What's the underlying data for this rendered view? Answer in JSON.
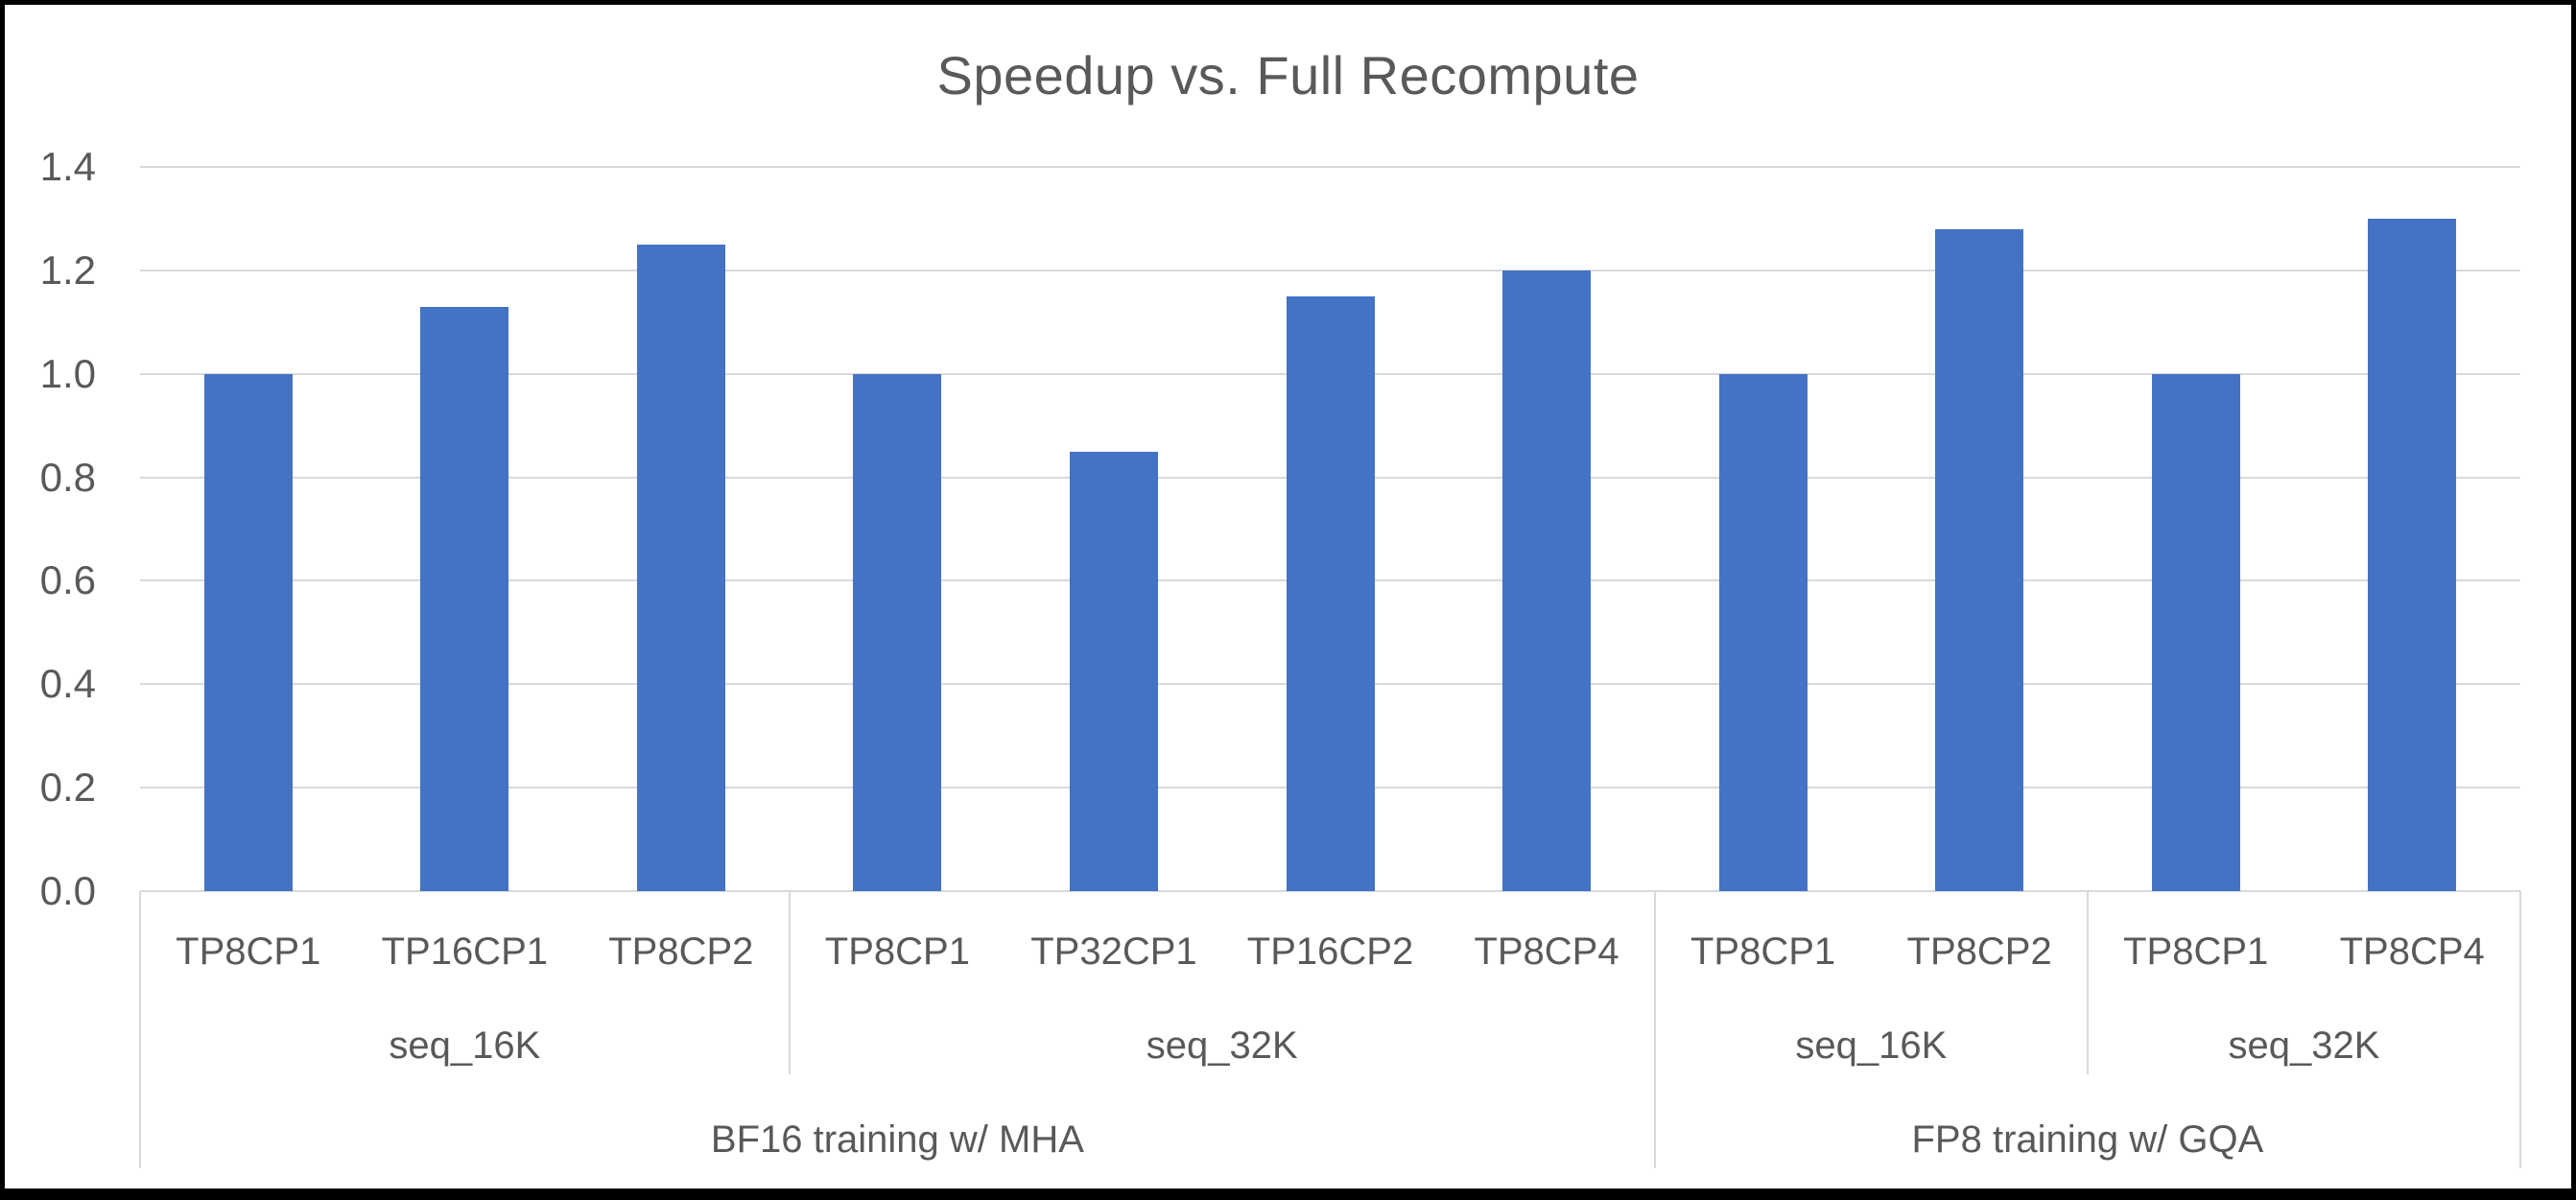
{
  "chart_data": {
    "type": "bar",
    "title": "Speedup vs. Full Recompute",
    "xlabel": "",
    "ylabel": "",
    "ylim": [
      0,
      1.4
    ],
    "ytick_step": 0.2,
    "yticks": [
      "0.0",
      "0.2",
      "0.4",
      "0.6",
      "0.8",
      "1.0",
      "1.2",
      "1.4"
    ],
    "grid": "horizontal",
    "legend": "none",
    "bar_color": "#4472C4",
    "gridline_color": "#D9D9D9",
    "divider_color": "#D9D9D9",
    "text_color": "#595959",
    "groups": [
      {
        "label": "BF16 training w/ MHA",
        "seq_groups": [
          {
            "label": "seq_16K",
            "bars": [
              {
                "label": "TP8CP1",
                "value": 1.0
              },
              {
                "label": "TP16CP1",
                "value": 1.13
              },
              {
                "label": "TP8CP2",
                "value": 1.25
              }
            ]
          },
          {
            "label": "seq_32K",
            "bars": [
              {
                "label": "TP8CP1",
                "value": 1.0
              },
              {
                "label": "TP32CP1",
                "value": 0.85
              },
              {
                "label": "TP16CP2",
                "value": 1.15
              },
              {
                "label": "TP8CP4",
                "value": 1.2
              }
            ]
          }
        ]
      },
      {
        "label": "FP8 training w/ GQA",
        "seq_groups": [
          {
            "label": "seq_16K",
            "bars": [
              {
                "label": "TP8CP1",
                "value": 1.0
              },
              {
                "label": "TP8CP2",
                "value": 1.28
              }
            ]
          },
          {
            "label": "seq_32K",
            "bars": [
              {
                "label": "TP8CP1",
                "value": 1.0
              },
              {
                "label": "TP8CP4",
                "value": 1.3
              }
            ]
          }
        ]
      }
    ]
  }
}
